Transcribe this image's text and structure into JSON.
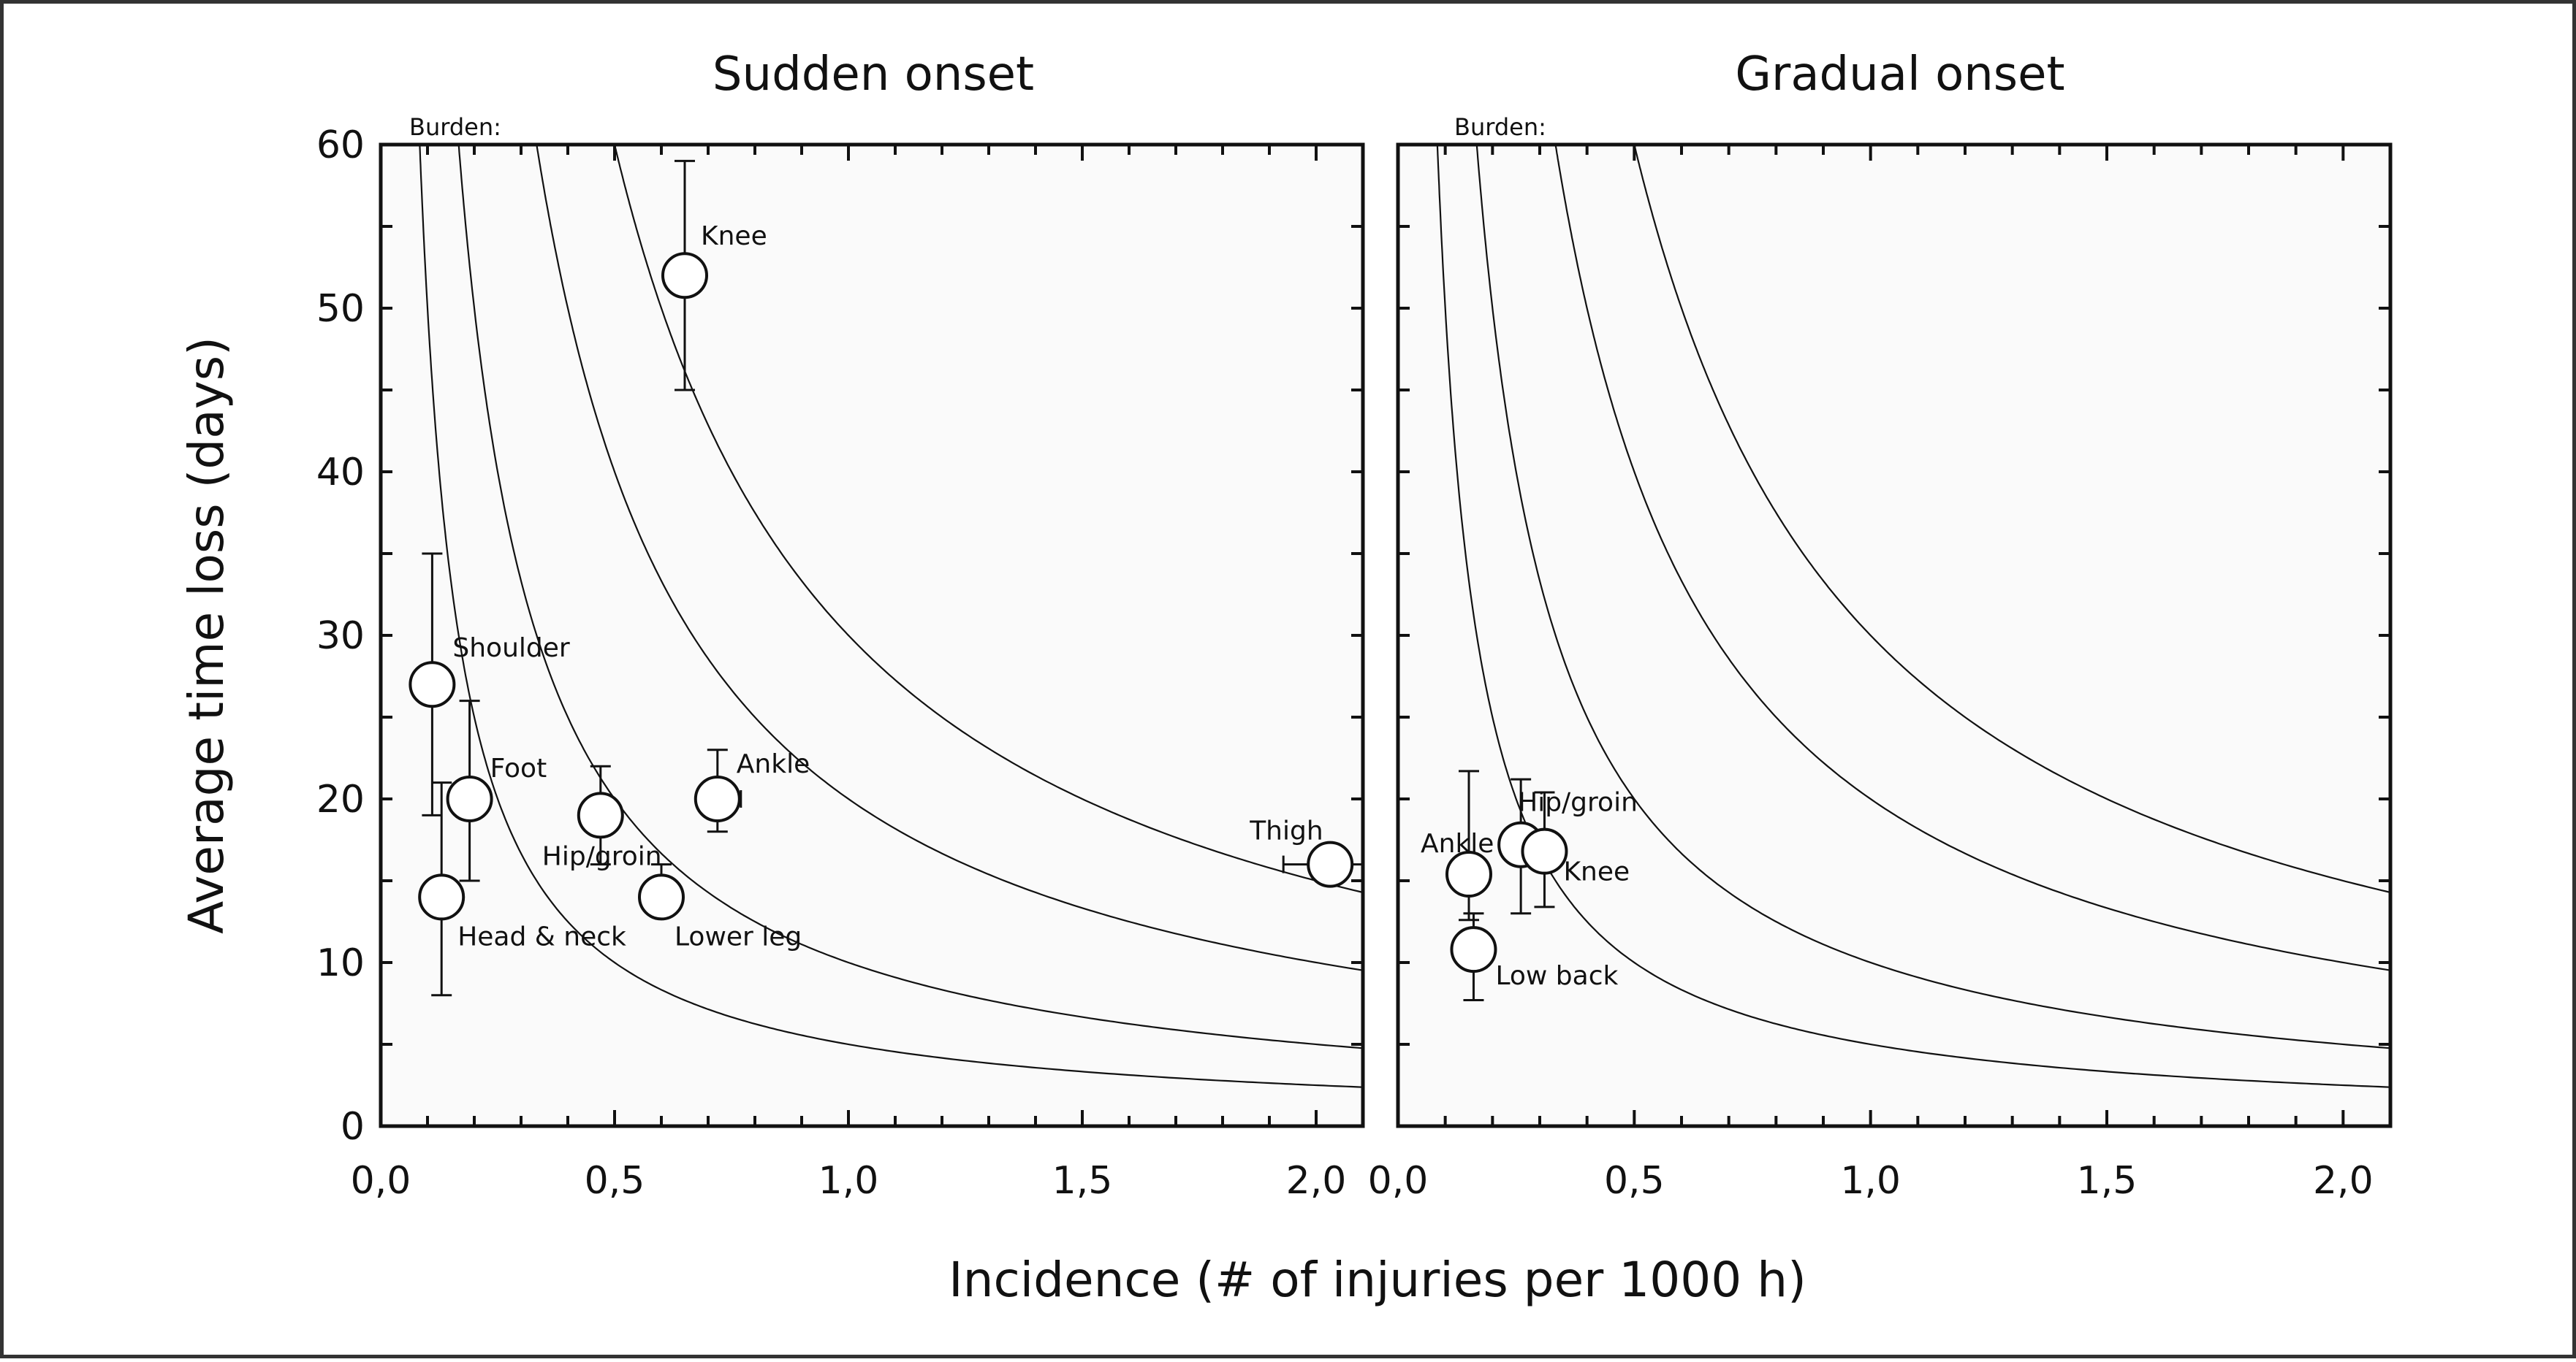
{
  "chart_data": [
    {
      "type": "scatter",
      "title": "Sudden onset",
      "burden_label": "Burden:",
      "xlim": [
        0,
        2.1
      ],
      "ylim": [
        0,
        60
      ],
      "xticks": [
        "0,0",
        "0,5",
        "1,0",
        "1,5",
        "2,0"
      ],
      "xtick_values": [
        0,
        0.5,
        1.0,
        1.5,
        2.0
      ],
      "yticks": [
        "0",
        "10",
        "20",
        "30",
        "40",
        "50",
        "60"
      ],
      "ytick_values": [
        0,
        10,
        20,
        30,
        40,
        50,
        60
      ],
      "burden_curves": [
        5,
        10,
        20,
        30
      ],
      "points": [
        {
          "label": "Knee",
          "x": 0.65,
          "y": 52,
          "y_err": [
            45,
            59
          ],
          "x_err": [
            0.62,
            0.68
          ]
        },
        {
          "label": "Shoulder",
          "x": 0.11,
          "y": 27,
          "y_err": [
            19,
            35
          ]
        },
        {
          "label": "Foot",
          "x": 0.19,
          "y": 20,
          "y_err": [
            15,
            26
          ]
        },
        {
          "label": "Head & neck",
          "x": 0.13,
          "y": 14,
          "y_err": [
            8,
            21
          ],
          "x_err": [
            0.1,
            0.16
          ]
        },
        {
          "label": "Hip/groin",
          "x": 0.47,
          "y": 19,
          "y_err": [
            16,
            22
          ],
          "x_err": [
            0.44,
            0.5
          ]
        },
        {
          "label": "Lower leg",
          "x": 0.6,
          "y": 14,
          "y_err": [
            13,
            16
          ],
          "x_err": [
            0.57,
            0.64
          ]
        },
        {
          "label": "Ankle",
          "x": 0.72,
          "y": 20,
          "y_err": [
            18,
            23
          ],
          "x_err": [
            0.68,
            0.77
          ]
        },
        {
          "label": "Thigh",
          "x": 2.03,
          "y": 16,
          "x_err": [
            1.93,
            2.1
          ]
        }
      ]
    },
    {
      "type": "scatter",
      "title": "Gradual onset",
      "burden_label": "Burden:",
      "xlim": [
        0,
        2.1
      ],
      "ylim": [
        0,
        60
      ],
      "xticks": [
        "0,0",
        "0,5",
        "1,0",
        "1,5",
        "2,0"
      ],
      "xtick_values": [
        0,
        0.5,
        1.0,
        1.5,
        2.0
      ],
      "burden_curves": [
        5,
        10,
        20,
        30
      ],
      "points": [
        {
          "label": "Ankle",
          "x": 0.15,
          "y": 15.4,
          "y_err": [
            12.6,
            21.7
          ]
        },
        {
          "label": "Hip/groin",
          "x": 0.26,
          "y": 17.2,
          "y_err": [
            13.0,
            21.2
          ]
        },
        {
          "label": "Knee",
          "x": 0.31,
          "y": 16.8,
          "y_err": [
            13.4,
            20.4
          ]
        },
        {
          "label": "Low back",
          "x": 0.16,
          "y": 10.8,
          "y_err": [
            7.7,
            13.0
          ]
        }
      ]
    }
  ],
  "ylabel": "Average time loss (days)",
  "xlabel": "Incidence (# of injuries per 1000 h)",
  "colors": {
    "plot_bg": "#fafafa",
    "ink": "#111111",
    "marker_fill": "#ffffff"
  }
}
